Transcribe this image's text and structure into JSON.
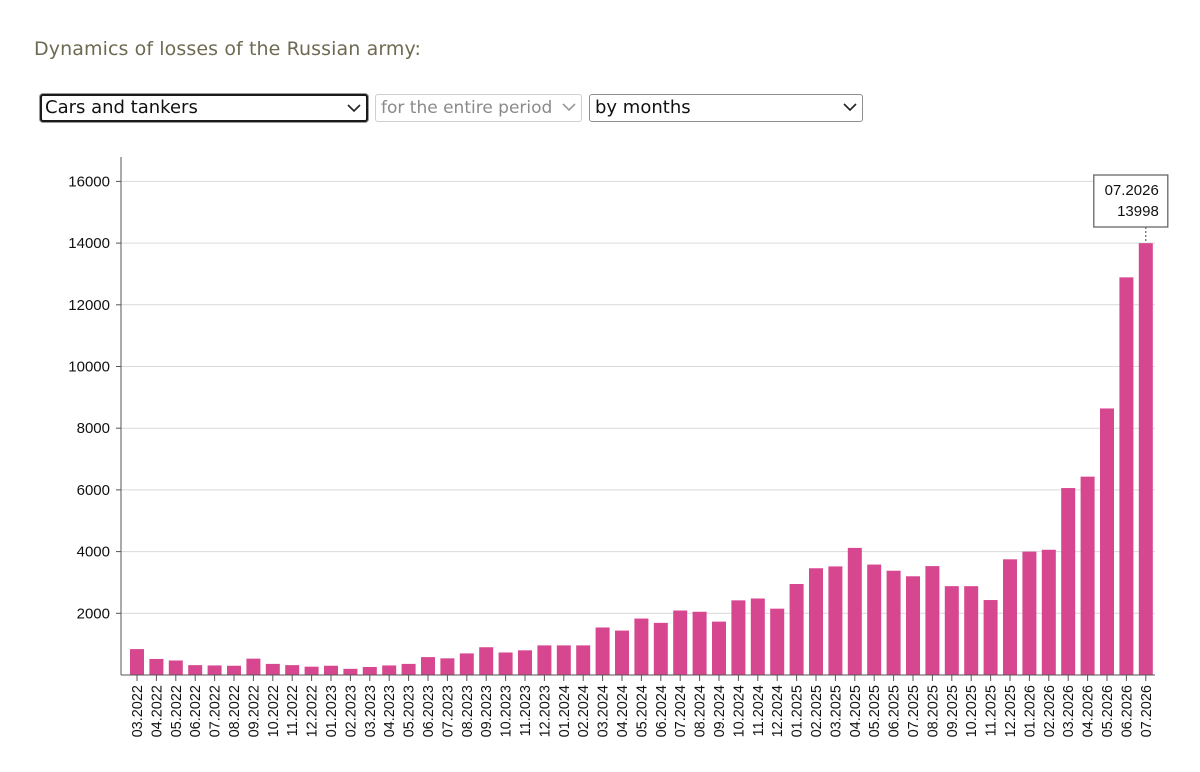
{
  "title": "Dynamics of losses of the Russian army:",
  "filters": {
    "category": "Cars and tankers",
    "period": "for the entire period",
    "granularity": "by months"
  },
  "tooltip": {
    "label": "07.2026",
    "value": "13998"
  },
  "colors": {
    "bar": "#d6478f",
    "grid": "#d9d9d9",
    "axis": "#555555"
  },
  "chart_data": {
    "type": "bar",
    "ylim": [
      0,
      16800
    ],
    "yticks": [
      2000,
      4000,
      6000,
      8000,
      10000,
      12000,
      14000,
      16000
    ],
    "grid": true,
    "categories": [
      "03.2022",
      "04.2022",
      "05.2022",
      "06.2022",
      "07.2022",
      "08.2022",
      "09.2022",
      "10.2022",
      "11.2022",
      "12.2022",
      "01.2023",
      "02.2023",
      "03.2023",
      "04.2023",
      "05.2023",
      "06.2023",
      "07.2023",
      "08.2023",
      "09.2023",
      "10.2023",
      "11.2023",
      "12.2023",
      "01.2024",
      "02.2024",
      "03.2024",
      "04.2024",
      "05.2024",
      "06.2024",
      "07.2024",
      "08.2024",
      "09.2024",
      "10.2024",
      "11.2024",
      "12.2024",
      "01.2025",
      "02.2025",
      "03.2025",
      "04.2025",
      "05.2025",
      "06.2025",
      "07.2025",
      "08.2025",
      "09.2025",
      "10.2025",
      "11.2025",
      "12.2025",
      "01.2026",
      "02.2026",
      "03.2026",
      "04.2026",
      "05.2026",
      "06.2026",
      "07.2026"
    ],
    "values": [
      840,
      520,
      470,
      320,
      310,
      300,
      530,
      360,
      320,
      270,
      300,
      200,
      260,
      310,
      360,
      580,
      540,
      700,
      900,
      730,
      800,
      960,
      960,
      960,
      1540,
      1440,
      1830,
      1690,
      2090,
      2050,
      1730,
      2420,
      2480,
      2150,
      2950,
      3460,
      3520,
      4120,
      3580,
      3380,
      3200,
      3530,
      2880,
      2880,
      2430,
      3750,
      4000,
      4060,
      6060,
      6430,
      8640,
      12890,
      13998
    ]
  }
}
